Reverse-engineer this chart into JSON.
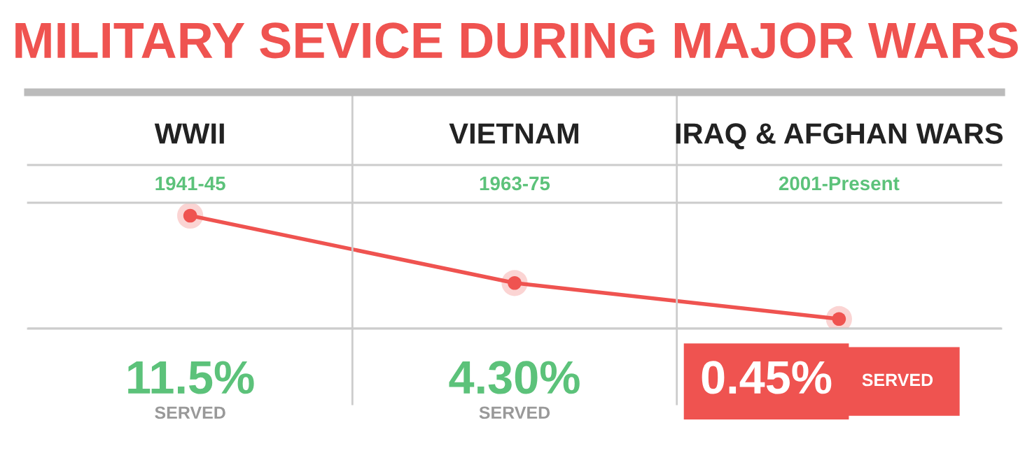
{
  "chart_data": {
    "type": "line",
    "title": "MILITARY SEVICE DURING MAJOR WARS",
    "categories": [
      "WWII",
      "VIETNAM",
      "IRAQ & AFGHAN WARS"
    ],
    "series": [
      {
        "color": "#ef5350",
        "values": [
          11.5,
          4.3,
          0.45
        ],
        "value_labels": [
          "11.5%",
          "4.30%",
          "0.45%"
        ]
      }
    ],
    "annotations": [
      "1941-45",
      "1963-75",
      "2001-Present",
      "SERVED",
      "SERVED",
      "SERVED"
    ],
    "marker": "circle",
    "line_style": "solid"
  }
}
